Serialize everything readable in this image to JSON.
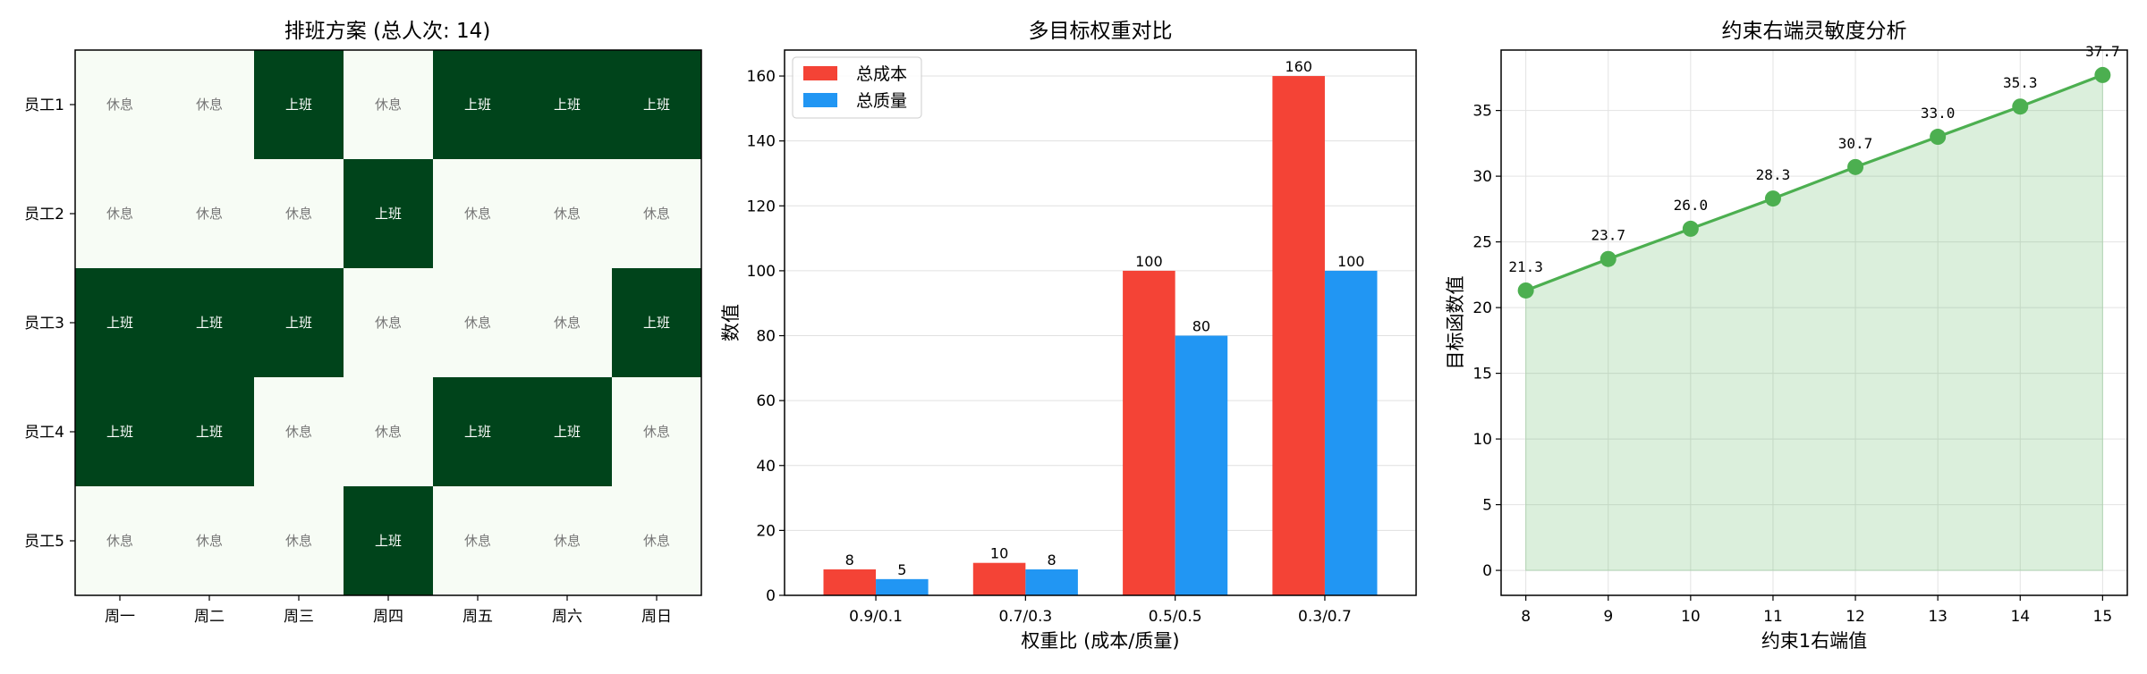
{
  "chart_data": [
    {
      "type": "heatmap",
      "title": "排班方案 (总人次: 14)",
      "rows": [
        "员工1",
        "员工2",
        "员工3",
        "员工4",
        "员工5"
      ],
      "columns": [
        "周一",
        "周二",
        "周三",
        "周四",
        "周五",
        "周六",
        "周日"
      ],
      "values": [
        [
          0,
          0,
          1,
          0,
          1,
          1,
          1
        ],
        [
          0,
          0,
          0,
          1,
          0,
          0,
          0
        ],
        [
          1,
          1,
          1,
          0,
          0,
          0,
          1
        ],
        [
          1,
          1,
          0,
          0,
          1,
          1,
          0
        ],
        [
          0,
          0,
          0,
          1,
          0,
          0,
          0
        ]
      ],
      "cell_labels": {
        "on": "上班",
        "off": "休息"
      },
      "colors": {
        "on": "#00441b",
        "off": "#f7fcf5",
        "on_text": "#ffffff",
        "off_text": "#777777"
      }
    },
    {
      "type": "bar",
      "title": "多目标权重对比",
      "xlabel": "权重比 (成本/质量)",
      "ylabel": "数值",
      "categories": [
        "0.9/0.1",
        "0.7/0.3",
        "0.5/0.5",
        "0.3/0.7"
      ],
      "series": [
        {
          "name": "总成本",
          "values": [
            8,
            10,
            100,
            160
          ],
          "color": "#f44336"
        },
        {
          "name": "总质量",
          "values": [
            5,
            8,
            80,
            100
          ],
          "color": "#2196f3"
        }
      ],
      "ylim": [
        0,
        168
      ],
      "yticks": [
        0,
        20,
        40,
        60,
        80,
        100,
        120,
        140,
        160
      ],
      "grid": true,
      "legend": "top-left"
    },
    {
      "type": "line",
      "title": "约束右端灵敏度分析",
      "xlabel": "约束1右端值",
      "ylabel": "目标函数值",
      "x": [
        8,
        9,
        10,
        11,
        12,
        13,
        14,
        15
      ],
      "y": [
        21.3,
        23.7,
        26.0,
        28.3,
        30.7,
        33.0,
        35.3,
        37.7
      ],
      "point_labels": [
        "21.3",
        "23.7",
        "26.0",
        "28.3",
        "30.7",
        "33.0",
        "35.3",
        "37.7"
      ],
      "xlim": [
        7.7,
        15.3
      ],
      "ylim": [
        -1.9,
        39.6
      ],
      "yticks": [
        0,
        5,
        10,
        15,
        20,
        25,
        30,
        35
      ],
      "grid": true,
      "filled": true,
      "color": "#4caf50"
    }
  ]
}
